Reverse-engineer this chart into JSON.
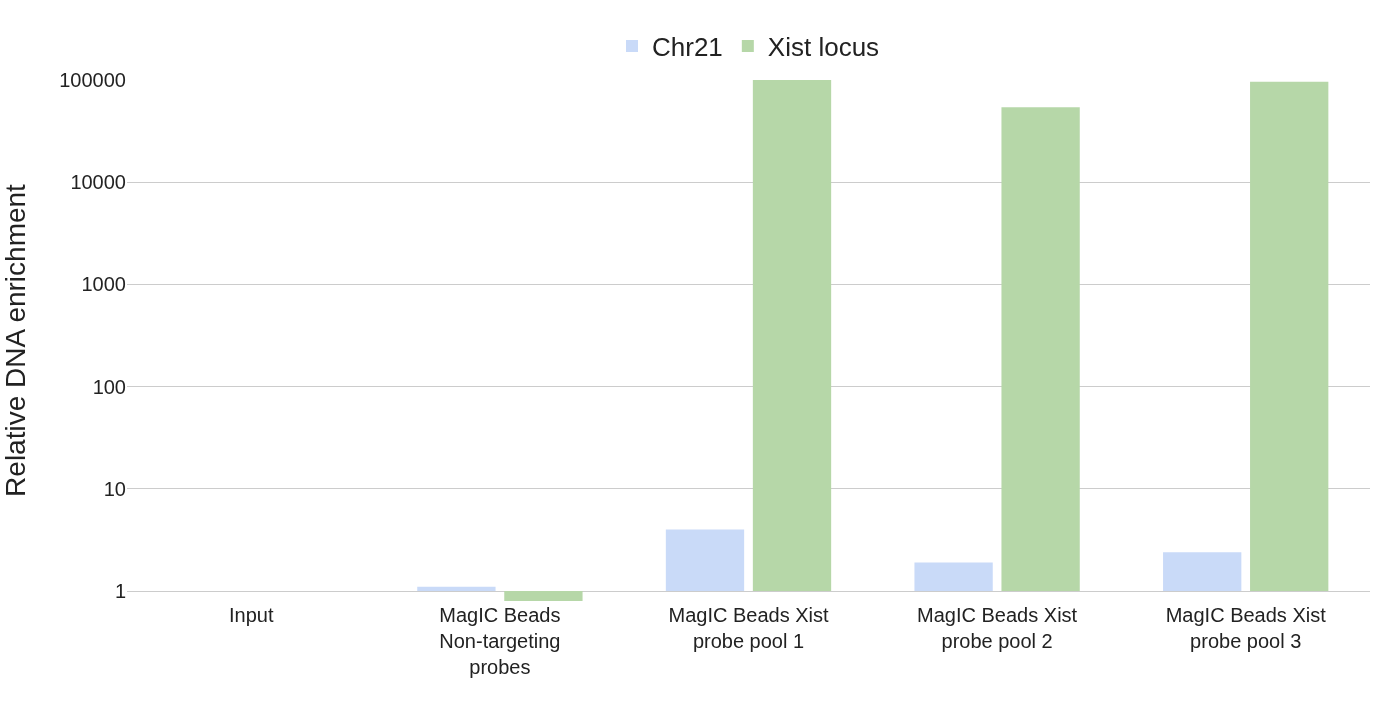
{
  "chart_data": {
    "type": "bar",
    "ylabel": "Relative DNA enrichment",
    "categories": [
      "Input",
      "MagIC Beads Non-targeting probes",
      "MagIC Beads Xist probe pool 1",
      "MagIC Beads Xist probe pool 2",
      "MagIC Beads Xist probe pool 3"
    ],
    "series": [
      {
        "name": "Chr21",
        "color": "#c9daf8",
        "base": [
          null,
          1,
          1,
          1,
          1
        ],
        "values": [
          null,
          0.1,
          3,
          0.9,
          1.4
        ]
      },
      {
        "name": "Xist locus",
        "color": "#b6d7a8",
        "base": [
          null,
          1,
          1,
          1,
          1
        ],
        "values": [
          null,
          -0.2,
          99999,
          53999,
          95999
        ]
      }
    ],
    "log": "y",
    "ylim": [
      0.8,
      100000
    ],
    "yticks": [
      1,
      10,
      100,
      1000,
      10000,
      100000
    ],
    "grid": "y",
    "legend": "top"
  }
}
